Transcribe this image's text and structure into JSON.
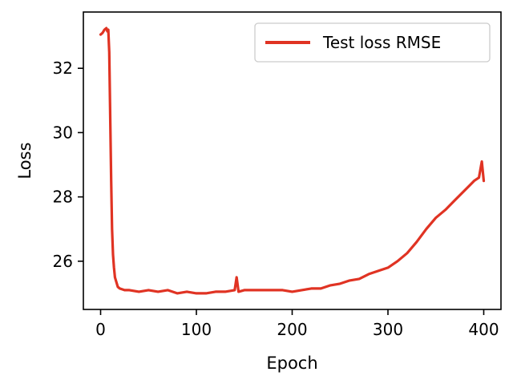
{
  "chart_data": {
    "type": "line",
    "xlabel": "Epoch",
    "ylabel": "Loss",
    "xlim": [
      -18,
      418
    ],
    "ylim": [
      24.5,
      33.75
    ],
    "x_ticks": [
      0,
      100,
      200,
      300,
      400
    ],
    "y_ticks": [
      26,
      28,
      30,
      32
    ],
    "grid": false,
    "legend": {
      "position": "top-right",
      "entries": [
        "Test loss RMSE"
      ]
    },
    "series": [
      {
        "name": "Test loss RMSE",
        "color": "#e03323",
        "x": [
          0,
          2,
          4,
          6,
          7,
          8,
          9,
          10,
          11,
          12,
          13,
          14,
          15,
          16,
          17,
          18,
          20,
          25,
          30,
          40,
          50,
          60,
          70,
          80,
          90,
          100,
          110,
          120,
          130,
          140,
          142,
          144,
          150,
          160,
          170,
          180,
          190,
          200,
          210,
          220,
          230,
          240,
          250,
          260,
          270,
          280,
          290,
          300,
          310,
          320,
          330,
          340,
          350,
          360,
          370,
          380,
          385,
          390,
          395,
          398,
          400
        ],
        "y": [
          33.05,
          33.1,
          33.2,
          33.25,
          33.15,
          33.2,
          32.5,
          30.5,
          28.5,
          27.0,
          26.2,
          25.8,
          25.5,
          25.4,
          25.3,
          25.2,
          25.15,
          25.1,
          25.1,
          25.05,
          25.1,
          25.05,
          25.1,
          25.0,
          25.05,
          25.0,
          25.0,
          25.05,
          25.05,
          25.1,
          25.5,
          25.05,
          25.1,
          25.1,
          25.1,
          25.1,
          25.1,
          25.05,
          25.1,
          25.15,
          25.15,
          25.25,
          25.3,
          25.4,
          25.45,
          25.6,
          25.7,
          25.8,
          26.0,
          26.25,
          26.6,
          27.0,
          27.35,
          27.6,
          27.9,
          28.2,
          28.35,
          28.5,
          28.6,
          29.1,
          28.5
        ]
      }
    ]
  }
}
